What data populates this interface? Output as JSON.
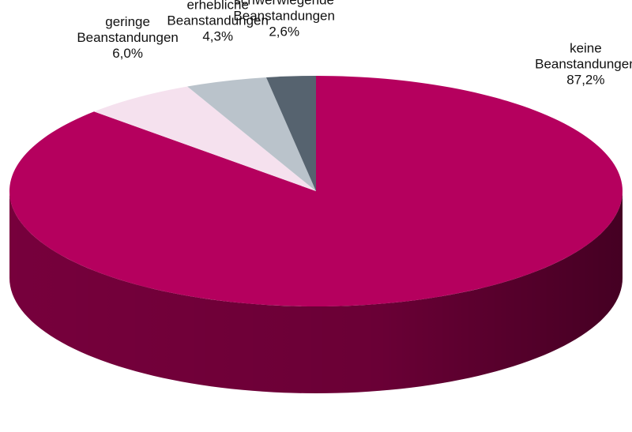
{
  "chart_data": {
    "type": "pie",
    "title": "",
    "slices": [
      {
        "label_lines": [
          "keine",
          "Beanstandungen"
        ],
        "value": 87.2,
        "value_label": "87,2%",
        "color": "#b5005e",
        "side_color": "#7d003f"
      },
      {
        "label_lines": [
          "geringe",
          "Beanstandungen"
        ],
        "value": 6.0,
        "value_label": "6,0%",
        "color": "#f5e1ee",
        "side_color": "#c9b6c2"
      },
      {
        "label_lines": [
          "erhebliche",
          "Beanstandungen"
        ],
        "value": 4.3,
        "value_label": "4,3%",
        "color": "#bac3cb",
        "side_color": "#8a939b"
      },
      {
        "label_lines": [
          "schwerwiegende",
          "Beanstandungen"
        ],
        "value": 2.6,
        "value_label": "2,6%",
        "color": "#56636f",
        "side_color": "#3a444d"
      }
    ],
    "legend": "none",
    "style": "3d-pie"
  }
}
